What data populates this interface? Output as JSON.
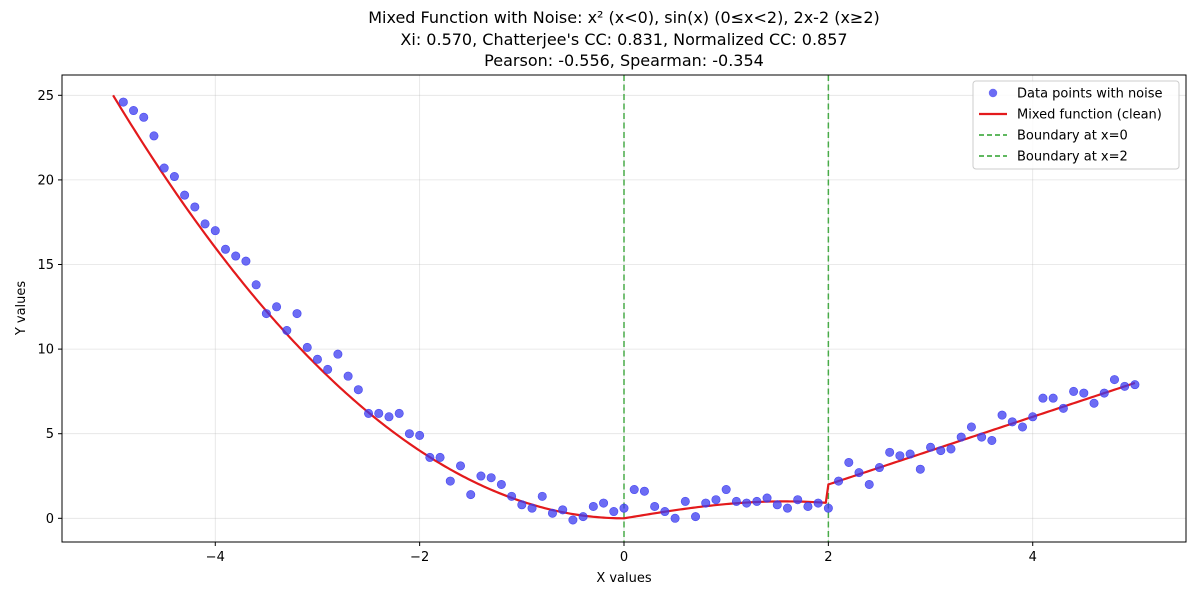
{
  "chart_data": {
    "type": "scatter",
    "title_lines": [
      "Mixed Function with Noise: x² (x<0), sin(x) (0≤x<2), 2x-2 (x≥2)",
      "Xi: 0.570, Chatterjee's CC: 0.831, Normalized CC: 0.857",
      "Pearson: -0.556, Spearman: -0.354"
    ],
    "xlabel": "X values",
    "ylabel": "Y values",
    "xlim": [
      -5.5,
      5.5
    ],
    "ylim": [
      -1.4,
      26.2
    ],
    "xticks": [
      -4,
      -2,
      0,
      2,
      4
    ],
    "xtick_labels": [
      "−4",
      "−2",
      "0",
      "2",
      "4"
    ],
    "yticks": [
      0,
      5,
      10,
      15,
      20,
      25
    ],
    "ytick_labels": [
      "0",
      "5",
      "10",
      "15",
      "20",
      "25"
    ],
    "grid": true,
    "legend_position": "top-right",
    "legend": [
      {
        "label": "Data points with noise",
        "kind": "marker",
        "color": "#3b3bf0"
      },
      {
        "label": "Mixed function (clean)",
        "kind": "line",
        "color": "#e31a1c"
      },
      {
        "label": "Boundary at x=0",
        "kind": "dashed",
        "color": "#2ca02c"
      },
      {
        "label": "Boundary at x=2",
        "kind": "dashed",
        "color": "#2ca02c"
      }
    ],
    "scatter": {
      "name": "Data points with noise",
      "color": "#3b3bf0",
      "x": [
        -4.9,
        -4.8,
        -4.7,
        -4.6,
        -4.5,
        -4.4,
        -4.3,
        -4.2,
        -4.1,
        -4.0,
        -3.9,
        -3.8,
        -3.7,
        -3.6,
        -3.5,
        -3.4,
        -3.3,
        -3.2,
        -3.1,
        -3.0,
        -2.9,
        -2.8,
        -2.7,
        -2.6,
        -2.5,
        -2.4,
        -2.3,
        -2.2,
        -2.1,
        -2.0,
        -1.9,
        -1.8,
        -1.7,
        -1.6,
        -1.5,
        -1.4,
        -1.3,
        -1.2,
        -1.1,
        -1.0,
        -0.9,
        -0.8,
        -0.7,
        -0.6,
        -0.5,
        -0.4,
        -0.3,
        -0.2,
        -0.1,
        0.0,
        0.1,
        0.2,
        0.3,
        0.4,
        0.5,
        0.6,
        0.7,
        0.8,
        0.9,
        1.0,
        1.1,
        1.2,
        1.3,
        1.4,
        1.5,
        1.6,
        1.7,
        1.8,
        1.9,
        2.0,
        2.1,
        2.2,
        2.3,
        2.4,
        2.5,
        2.6,
        2.7,
        2.8,
        2.9,
        3.0,
        3.1,
        3.2,
        3.3,
        3.4,
        3.5,
        3.6,
        3.7,
        3.8,
        3.9,
        4.0,
        4.1,
        4.2,
        4.3,
        4.4,
        4.5,
        4.6,
        4.7,
        4.8,
        4.9,
        5.0
      ],
      "y": [
        24.6,
        24.1,
        23.7,
        22.6,
        20.7,
        20.2,
        19.1,
        18.4,
        17.4,
        17.0,
        15.9,
        15.5,
        15.2,
        13.8,
        12.1,
        12.5,
        11.1,
        12.1,
        10.1,
        9.4,
        8.8,
        9.7,
        8.4,
        7.6,
        6.2,
        6.2,
        6.0,
        6.2,
        5.0,
        4.9,
        3.6,
        3.6,
        2.2,
        3.1,
        1.4,
        2.5,
        2.4,
        2.0,
        1.3,
        0.8,
        0.6,
        1.3,
        0.3,
        0.5,
        -0.1,
        0.1,
        0.7,
        0.9,
        0.4,
        0.6,
        1.7,
        1.6,
        0.7,
        0.4,
        0.0,
        1.0,
        0.1,
        0.9,
        1.1,
        1.7,
        1.0,
        0.9,
        1.0,
        1.2,
        0.8,
        0.6,
        1.1,
        0.7,
        0.9,
        0.6,
        2.2,
        3.3,
        2.7,
        2.0,
        3.0,
        3.9,
        3.7,
        3.8,
        2.9,
        4.2,
        4.0,
        4.1,
        4.8,
        5.4,
        4.8,
        4.6,
        6.1,
        5.7,
        5.4,
        6.0,
        7.1,
        7.1,
        6.5,
        7.5,
        7.4,
        6.8,
        7.4,
        8.2,
        7.8,
        7.9
      ]
    },
    "line": {
      "name": "Mixed function (clean)",
      "color": "#e31a1c",
      "pieces": [
        "x^2 for x<0",
        "sin(x) for 0<=x<2",
        "2x-2 for x>=2"
      ],
      "x_range": [
        -5,
        5
      ]
    },
    "vlines": [
      {
        "x": 0,
        "label": "Boundary at x=0",
        "color": "#2ca02c"
      },
      {
        "x": 2,
        "label": "Boundary at x=2",
        "color": "#2ca02c"
      }
    ]
  }
}
